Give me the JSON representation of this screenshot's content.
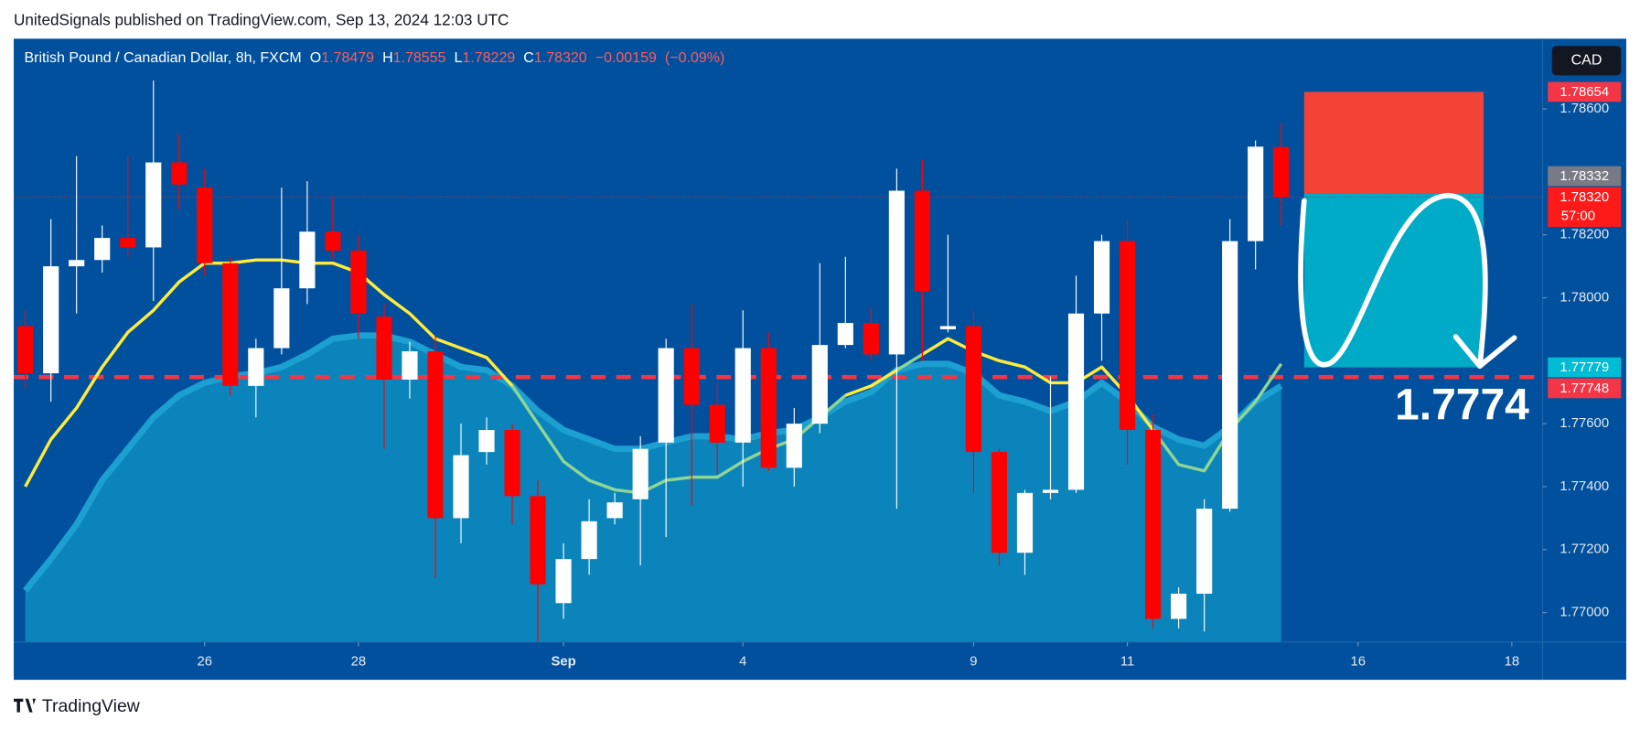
{
  "header": "UnitedSignals published on TradingView.com, Sep 13, 2024 12:03 UTC",
  "brand": "TradingView",
  "chart_data": {
    "type": "candlestick",
    "legend": {
      "symbol": "British Pound / Canadian Dollar, 8h, FXCM",
      "fields": [
        {
          "letter": "O",
          "value": 1.78479
        },
        {
          "letter": "H",
          "value": 1.78555
        },
        {
          "letter": "L",
          "value": 1.78229
        },
        {
          "letter": "C",
          "value": 1.7832,
          "label": "1.78320"
        }
      ],
      "change": {
        "value": -0.00159,
        "label": "−0.00159"
      },
      "change_percent": {
        "value": -0.09,
        "label": "(−0.09%)"
      }
    },
    "currency": "CAD",
    "up_color": "#ffffff",
    "down_color": "#ff0000",
    "open": [
      1.7791,
      1.7776,
      1.781,
      1.7812,
      1.7819,
      1.7816,
      1.7843,
      1.7835,
      1.7811,
      1.7772,
      1.7784,
      1.7803,
      1.7821,
      1.7815,
      1.7794,
      1.7774,
      1.7783,
      1.773,
      1.7751,
      1.7758,
      1.7737,
      1.7703,
      1.7717,
      1.773,
      1.7736,
      1.7754,
      1.7784,
      1.7766,
      1.7754,
      1.7784,
      1.7746,
      1.776,
      1.7785,
      1.7792,
      1.7782,
      1.7834,
      1.779,
      1.7791,
      1.7751,
      1.7719,
      1.7738,
      1.7739,
      1.7795,
      1.7818,
      1.7758,
      1.7698,
      1.7706,
      1.7733,
      1.7818,
      1.78479
    ],
    "high": [
      1.7796,
      1.7825,
      1.7845,
      1.7823,
      1.7845,
      1.7869,
      1.7852,
      1.7841,
      1.7813,
      1.7787,
      1.7835,
      1.7837,
      1.7832,
      1.782,
      1.7798,
      1.7786,
      1.7788,
      1.776,
      1.7762,
      1.776,
      1.7742,
      1.7722,
      1.7736,
      1.7738,
      1.7756,
      1.7787,
      1.7798,
      1.7773,
      1.7796,
      1.7789,
      1.7765,
      1.7811,
      1.7813,
      1.7797,
      1.7841,
      1.7844,
      1.782,
      1.7796,
      1.7752,
      1.7739,
      1.7775,
      1.7807,
      1.782,
      1.7825,
      1.7763,
      1.7708,
      1.7736,
      1.7825,
      1.785,
      1.78555
    ],
    "low": [
      1.7771,
      1.7767,
      1.7795,
      1.7808,
      1.7813,
      1.7799,
      1.7828,
      1.7807,
      1.7769,
      1.7762,
      1.7782,
      1.7798,
      1.7812,
      1.7787,
      1.7752,
      1.7768,
      1.7711,
      1.7722,
      1.7747,
      1.7728,
      1.7691,
      1.7698,
      1.7712,
      1.7728,
      1.7715,
      1.7724,
      1.7734,
      1.7744,
      1.774,
      1.7745,
      1.774,
      1.7757,
      1.7784,
      1.778,
      1.7733,
      1.778,
      1.7789,
      1.7738,
      1.7715,
      1.7712,
      1.7736,
      1.7738,
      1.778,
      1.7747,
      1.7695,
      1.7695,
      1.7694,
      1.7732,
      1.7809,
      1.78229
    ],
    "close": [
      1.7776,
      1.781,
      1.7812,
      1.7819,
      1.7816,
      1.7843,
      1.7836,
      1.7811,
      1.7772,
      1.7784,
      1.7803,
      1.7821,
      1.7815,
      1.7795,
      1.7774,
      1.7783,
      1.773,
      1.775,
      1.7758,
      1.7737,
      1.7709,
      1.7717,
      1.7729,
      1.7735,
      1.7752,
      1.7784,
      1.7766,
      1.7754,
      1.7784,
      1.7746,
      1.776,
      1.7785,
      1.7792,
      1.7782,
      1.7834,
      1.7802,
      1.7791,
      1.7751,
      1.7719,
      1.7738,
      1.7739,
      1.7795,
      1.7818,
      1.7758,
      1.7698,
      1.7706,
      1.7733,
      1.7818,
      1.7848,
      1.7832
    ],
    "ma_fast": {
      "color": "#ffeb3b",
      "below_color": "#8fd694",
      "values": [
        1.774,
        1.7755,
        1.7765,
        1.7778,
        1.7789,
        1.7796,
        1.7805,
        1.7811,
        1.7811,
        1.7812,
        1.7812,
        1.7811,
        1.7811,
        1.7808,
        1.7801,
        1.7795,
        1.7787,
        1.7784,
        1.7781,
        1.7772,
        1.776,
        1.7748,
        1.7742,
        1.7739,
        1.7738,
        1.7742,
        1.7743,
        1.7743,
        1.7748,
        1.7752,
        1.7755,
        1.7762,
        1.7769,
        1.7772,
        1.7777,
        1.7782,
        1.7787,
        1.7783,
        1.778,
        1.7778,
        1.7773,
        1.7773,
        1.7778,
        1.7769,
        1.7758,
        1.7747,
        1.7745,
        1.7758,
        1.7767,
        1.7779
      ]
    },
    "ma_slow": {
      "color": "#1c9fd1",
      "fill": "#0a84bb",
      "values": [
        1.7707,
        1.7717,
        1.7728,
        1.7742,
        1.7752,
        1.7762,
        1.7769,
        1.7773,
        1.7775,
        1.7776,
        1.7778,
        1.7782,
        1.7787,
        1.7788,
        1.7788,
        1.7786,
        1.7782,
        1.7778,
        1.7777,
        1.7772,
        1.7764,
        1.7758,
        1.7755,
        1.7752,
        1.7752,
        1.7754,
        1.7756,
        1.7756,
        1.7755,
        1.7757,
        1.7758,
        1.7762,
        1.7767,
        1.777,
        1.7777,
        1.7779,
        1.7779,
        1.7776,
        1.7769,
        1.7767,
        1.7764,
        1.7767,
        1.7773,
        1.7767,
        1.7759,
        1.7755,
        1.7753,
        1.7759,
        1.7767,
        1.7772
      ]
    },
    "position": {
      "stop": 1.78654,
      "entry": 1.78332,
      "target": 1.77779,
      "x_start": 49.9,
      "x_end": 56.9,
      "stop_color": "#f44336",
      "target_color": "#00abc8"
    },
    "annotation": "1.7774",
    "price_labels": [
      {
        "value": 1.78654,
        "color": "#f23645"
      },
      {
        "value": 1.78332,
        "color": "#787b86"
      },
      {
        "value": 1.7832,
        "label": "1.78320",
        "color": "#ff1a1a",
        "countdown": "57:00",
        "style": "dotted"
      },
      {
        "value": 1.77779,
        "color": "#00bcd4"
      },
      {
        "value": 1.77748,
        "color": "#f23645",
        "style": "dashed"
      }
    ],
    "xlim": [
      -0.45,
      59.2
    ],
    "ylim": [
      1.76906,
      1.78823
    ],
    "yticks": [
      {
        "value": 1.77,
        "label": "1.77000"
      },
      {
        "value": 1.772,
        "label": "1.77200"
      },
      {
        "value": 1.774,
        "label": "1.77400"
      },
      {
        "value": 1.776,
        "label": "1.77600"
      },
      {
        "value": 1.78,
        "label": "1.78000"
      },
      {
        "value": 1.782,
        "label": "1.78200"
      },
      {
        "value": 1.786,
        "label": "1.78600"
      }
    ],
    "xticks": [
      {
        "value": 7,
        "label": "26"
      },
      {
        "value": 13,
        "label": "28"
      },
      {
        "value": 21,
        "label": "Sep"
      },
      {
        "value": 28,
        "label": "4"
      },
      {
        "value": 37,
        "label": "9"
      },
      {
        "value": 43,
        "label": "11"
      },
      {
        "value": 52,
        "label": "16"
      },
      {
        "value": 58,
        "label": "18"
      }
    ],
    "grid": false,
    "background": "#00509d"
  }
}
